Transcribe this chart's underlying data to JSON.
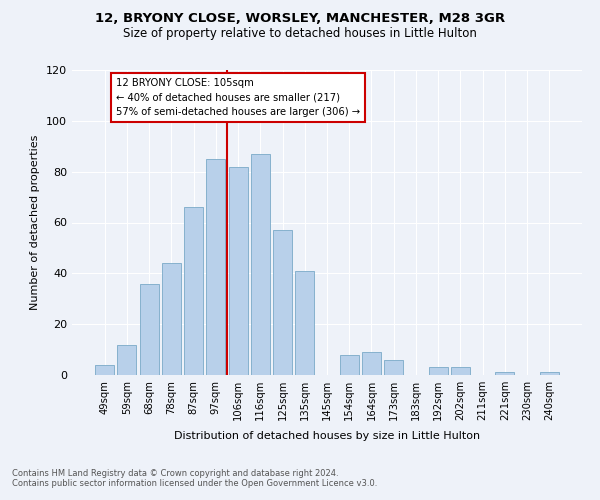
{
  "title1": "12, BRYONY CLOSE, WORSLEY, MANCHESTER, M28 3GR",
  "title2": "Size of property relative to detached houses in Little Hulton",
  "xlabel": "Distribution of detached houses by size in Little Hulton",
  "ylabel": "Number of detached properties",
  "footnote1": "Contains HM Land Registry data © Crown copyright and database right 2024.",
  "footnote2": "Contains public sector information licensed under the Open Government Licence v3.0.",
  "annotation_line1": "12 BRYONY CLOSE: 105sqm",
  "annotation_line2": "← 40% of detached houses are smaller (217)",
  "annotation_line3": "57% of semi-detached houses are larger (306) →",
  "bar_labels": [
    "49sqm",
    "59sqm",
    "68sqm",
    "78sqm",
    "87sqm",
    "97sqm",
    "106sqm",
    "116sqm",
    "125sqm",
    "135sqm",
    "145sqm",
    "154sqm",
    "164sqm",
    "173sqm",
    "183sqm",
    "192sqm",
    "202sqm",
    "211sqm",
    "221sqm",
    "230sqm",
    "240sqm"
  ],
  "bar_values": [
    4,
    12,
    36,
    44,
    66,
    85,
    82,
    87,
    57,
    41,
    0,
    8,
    9,
    6,
    0,
    3,
    3,
    0,
    1,
    0,
    1
  ],
  "bar_color": "#b8d0ea",
  "bar_edge_color": "#7aaac8",
  "reference_line_color": "#cc0000",
  "annotation_box_color": "#cc0000",
  "background_color": "#eef2f9",
  "grid_color": "#ffffff",
  "ylim": [
    0,
    120
  ],
  "yticks": [
    0,
    20,
    40,
    60,
    80,
    100,
    120
  ]
}
